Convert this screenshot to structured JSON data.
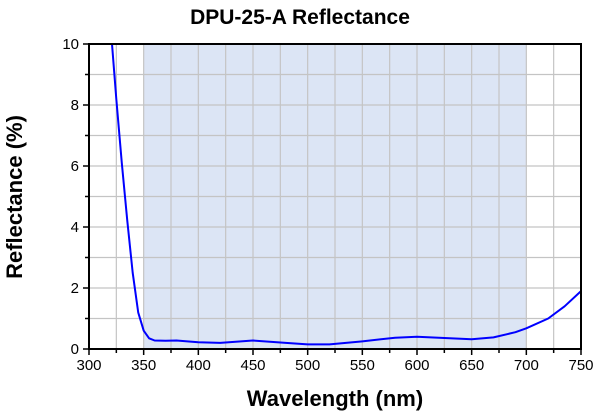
{
  "chart_data": {
    "type": "line",
    "title": "DPU-25-A Reflectance",
    "xlabel": "Wavelength (nm)",
    "ylabel": "Reflectance (%)",
    "xlim": [
      300,
      750
    ],
    "ylim": [
      0,
      10
    ],
    "xticks": [
      300,
      350,
      400,
      450,
      500,
      550,
      600,
      650,
      700,
      750
    ],
    "yticks": [
      0,
      2,
      4,
      6,
      8,
      10
    ],
    "grid": true,
    "shaded_region": [
      350,
      700
    ],
    "colors": {
      "line": "#0000ff",
      "shade": "#dce5f5",
      "grid": "#c4c4c4"
    },
    "series": [
      {
        "x": [
          321,
          325,
          330,
          335,
          340,
          345,
          350,
          355,
          360,
          370,
          380,
          400,
          420,
          450,
          480,
          500,
          520,
          550,
          580,
          600,
          630,
          650,
          670,
          690,
          700,
          720,
          735,
          750
        ],
        "y": [
          10,
          8.2,
          6.1,
          4.2,
          2.5,
          1.2,
          0.6,
          0.35,
          0.28,
          0.27,
          0.28,
          0.22,
          0.2,
          0.28,
          0.2,
          0.15,
          0.15,
          0.25,
          0.37,
          0.4,
          0.35,
          0.32,
          0.38,
          0.55,
          0.68,
          1.0,
          1.4,
          1.9
        ]
      }
    ]
  }
}
